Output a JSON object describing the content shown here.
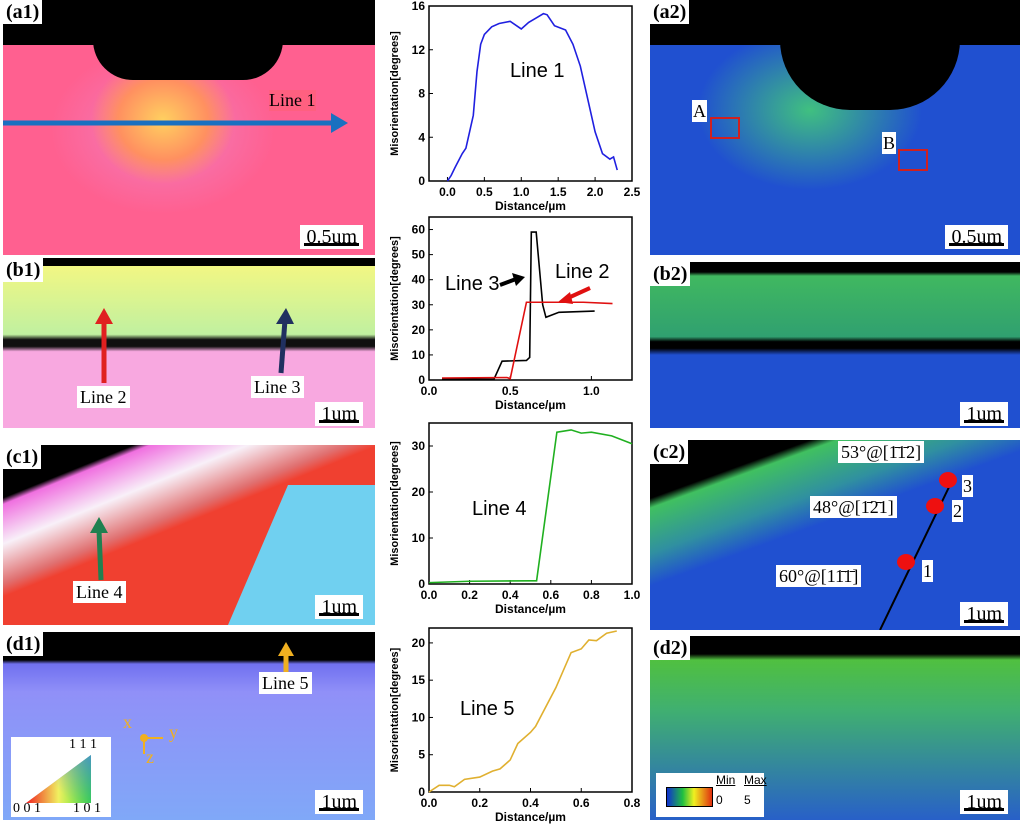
{
  "panels": {
    "a1": {
      "label": "(a1)",
      "scale": "0.5um",
      "line": "Line 1"
    },
    "a2": {
      "label": "(a2)",
      "scale": "0.5um",
      "box_a": "A",
      "box_b": "B"
    },
    "b1": {
      "label": "(b1)",
      "scale": "1um",
      "line2": "Line 2",
      "line3": "Line 3"
    },
    "b2": {
      "label": "(b2)",
      "scale": "1um"
    },
    "c1": {
      "label": "(c1)",
      "scale": "1um",
      "line": "Line 4"
    },
    "c2": {
      "label": "(c2)",
      "scale": "1um",
      "ann1": "60°@[11̄1̄]",
      "ann2": "48°@[1̄2̄1]",
      "ann3": "53°@[1̄1̄2]",
      "pt1": "1",
      "pt2": "2",
      "pt3": "3"
    },
    "d1": {
      "label": "(d1)",
      "scale": "1um",
      "line": "Line 5",
      "ipf": {
        "top": "1 1 1",
        "left": "0 0 1",
        "right": "1 0 1"
      },
      "axes": {
        "x": "x",
        "y": "y",
        "z": "z"
      }
    },
    "d2": {
      "label": "(d2)",
      "scale": "1um",
      "legend": {
        "min_label": "Min",
        "max_label": "Max",
        "min": "0",
        "max": "5"
      }
    }
  },
  "colors": {
    "line1": "#2020e0",
    "line2": "#e01010",
    "line3": "#000000",
    "line4": "#20b020",
    "line5": "#e0b030"
  },
  "chart_data": [
    {
      "type": "line",
      "xlabel": "Distance/µm",
      "ylabel": "Misorientation[degrees]",
      "xlim": [
        -0.25,
        2.5
      ],
      "ylim": [
        0,
        16
      ],
      "xticks": [
        "0.0",
        "0.5",
        "1.0",
        "1.5",
        "2.0",
        "2.5"
      ],
      "xtickv": [
        0,
        0.5,
        1,
        1.5,
        2,
        2.5
      ],
      "yticks": [
        "0",
        "4",
        "8",
        "12",
        "16"
      ],
      "ytickv": [
        0,
        4,
        8,
        12,
        16
      ],
      "annotation": "Line 1",
      "series": [
        {
          "name": "Line 1",
          "color": "#2020e0",
          "x": [
            0,
            0.05,
            0.1,
            0.2,
            0.25,
            0.3,
            0.35,
            0.4,
            0.45,
            0.5,
            0.6,
            0.7,
            0.85,
            1.0,
            1.1,
            1.2,
            1.3,
            1.35,
            1.45,
            1.6,
            1.7,
            1.8,
            1.9,
            2.0,
            2.1,
            2.2,
            2.25,
            2.3
          ],
          "y": [
            0,
            0.5,
            1.2,
            2.5,
            3,
            4.5,
            6,
            10,
            12.5,
            13.4,
            14.1,
            14.4,
            14.6,
            13.9,
            14.5,
            14.9,
            15.3,
            15.2,
            14.2,
            13.8,
            12.5,
            10.5,
            7.5,
            4.5,
            2.5,
            2,
            2.2,
            1
          ]
        }
      ]
    },
    {
      "type": "line",
      "xlabel": "Distance/µm",
      "ylabel": "Misorientation[degrees]",
      "xlim": [
        0,
        1.25
      ],
      "ylim": [
        0,
        65
      ],
      "xticks": [
        "0.0",
        "0.5",
        "1.0"
      ],
      "xtickv": [
        0,
        0.5,
        1
      ],
      "yticks": [
        "0",
        "10",
        "20",
        "30",
        "40",
        "50",
        "60"
      ],
      "ytickv": [
        0,
        10,
        20,
        30,
        40,
        50,
        60
      ],
      "annotations": [
        "Line 3",
        "Line 2"
      ],
      "series": [
        {
          "name": "Line 3",
          "color": "#000000",
          "x": [
            0.08,
            0.4,
            0.45,
            0.6,
            0.62,
            0.63,
            0.66,
            0.7,
            0.72,
            0.8,
            1.02
          ],
          "y": [
            0.3,
            0.3,
            7.5,
            7.8,
            9,
            59,
            59,
            30,
            25,
            27,
            27.5
          ]
        },
        {
          "name": "Line 2",
          "color": "#e01010",
          "x": [
            0.08,
            0.48,
            0.5,
            0.6,
            0.95,
            1.13
          ],
          "y": [
            0.8,
            1,
            0.5,
            31,
            31,
            30.5
          ]
        }
      ]
    },
    {
      "type": "line",
      "xlabel": "Distance/µm",
      "ylabel": "Misorientation[degrees]",
      "xlim": [
        0,
        1
      ],
      "ylim": [
        0,
        35
      ],
      "xticks": [
        "0.0",
        "0.2",
        "0.4",
        "0.6",
        "0.8",
        "1.0"
      ],
      "xtickv": [
        0,
        0.2,
        0.4,
        0.6,
        0.8,
        1
      ],
      "yticks": [
        "0",
        "10",
        "20",
        "30"
      ],
      "ytickv": [
        0,
        10,
        20,
        30
      ],
      "annotation": "Line 4",
      "series": [
        {
          "name": "Line 4",
          "color": "#20b020",
          "x": [
            0,
            0.2,
            0.5,
            0.53,
            0.63,
            0.7,
            0.75,
            0.8,
            0.9,
            1.0
          ],
          "y": [
            0.3,
            0.6,
            0.7,
            0.7,
            33,
            33.5,
            32.8,
            33,
            32.2,
            30.5
          ]
        }
      ]
    },
    {
      "type": "line",
      "xlabel": "Distance/µm",
      "ylabel": "Misorientation[degrees]",
      "xlim": [
        0,
        0.8
      ],
      "ylim": [
        0,
        22
      ],
      "xticks": [
        "0.0",
        "0.2",
        "0.4",
        "0.6",
        "0.8"
      ],
      "xtickv": [
        0,
        0.2,
        0.4,
        0.6,
        0.8
      ],
      "yticks": [
        "0",
        "5",
        "10",
        "15",
        "20"
      ],
      "ytickv": [
        0,
        5,
        10,
        15,
        20
      ],
      "annotation": "Line 5",
      "series": [
        {
          "name": "Line 5",
          "color": "#e0b030",
          "x": [
            0,
            0.04,
            0.08,
            0.1,
            0.14,
            0.2,
            0.25,
            0.28,
            0.32,
            0.35,
            0.4,
            0.42,
            0.5,
            0.56,
            0.6,
            0.63,
            0.66,
            0.7,
            0.74
          ],
          "y": [
            0,
            0.9,
            0.9,
            0.7,
            1.7,
            2,
            2.8,
            3.1,
            4.3,
            6.5,
            8,
            8.8,
            14,
            18.7,
            19.2,
            20.4,
            20.3,
            21.3,
            21.6
          ]
        }
      ]
    }
  ]
}
